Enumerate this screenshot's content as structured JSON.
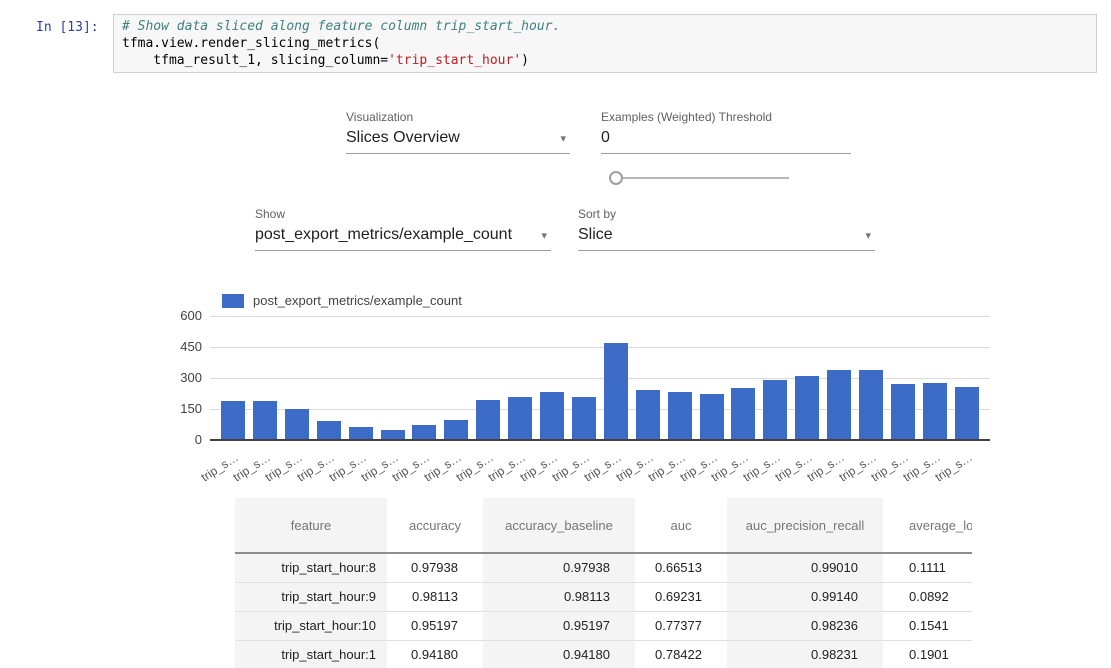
{
  "code_cell": {
    "prompt": "In [13]:",
    "comment": "# Show data sliced along feature column trip_start_hour.",
    "line2": "tfma.view.render_slicing_metrics(",
    "line3_pre": "    tfma_result_1, slicing_column=",
    "line3_string": "'trip_start_hour'",
    "line3_post": ")"
  },
  "controls": {
    "visualization": {
      "label": "Visualization",
      "value": "Slices Overview"
    },
    "threshold": {
      "label": "Examples (Weighted) Threshold",
      "value": "0",
      "slider_value": 0
    },
    "show": {
      "label": "Show",
      "value": "post_export_metrics/example_count"
    },
    "sort_by": {
      "label": "Sort by",
      "value": "Slice"
    }
  },
  "chart_data": {
    "type": "bar",
    "legend": "post_export_metrics/example_count",
    "bar_color": "#3d6cc8",
    "ylim": [
      0,
      600
    ],
    "y_ticks": [
      0,
      150,
      300,
      450,
      600
    ],
    "grid": true,
    "legend_position": "top-left",
    "x_tick_labels": [
      "trip_s…",
      "trip_s…",
      "trip_s…",
      "trip_s…",
      "trip_s…",
      "trip_s…",
      "trip_s…",
      "trip_s…",
      "trip_s…",
      "trip_s…",
      "trip_s…",
      "trip_s…",
      "trip_s…",
      "trip_s…",
      "trip_s…",
      "trip_s…",
      "trip_s…",
      "trip_s…",
      "trip_s…",
      "trip_s…",
      "trip_s…",
      "trip_s…",
      "trip_s…",
      "trip_s…"
    ],
    "values": [
      185,
      185,
      147,
      86,
      57,
      44,
      67,
      93,
      188,
      205,
      227,
      205,
      465,
      237,
      230,
      220,
      245,
      285,
      305,
      333,
      333,
      265,
      271,
      251
    ]
  },
  "table": {
    "columns": [
      "feature",
      "accuracy",
      "accuracy_baseline",
      "auc",
      "auc_precision_recall",
      "average_loss"
    ],
    "rows": [
      [
        "trip_start_hour:8",
        "0.97938",
        "0.97938",
        "0.66513",
        "0.99010",
        "0.1111"
      ],
      [
        "trip_start_hour:9",
        "0.98113",
        "0.98113",
        "0.69231",
        "0.99140",
        "0.0892"
      ],
      [
        "trip_start_hour:10",
        "0.95197",
        "0.95197",
        "0.77377",
        "0.98236",
        "0.1541"
      ],
      [
        "trip_start_hour:1",
        "0.94180",
        "0.94180",
        "0.78422",
        "0.98231",
        "0.1901"
      ]
    ]
  }
}
